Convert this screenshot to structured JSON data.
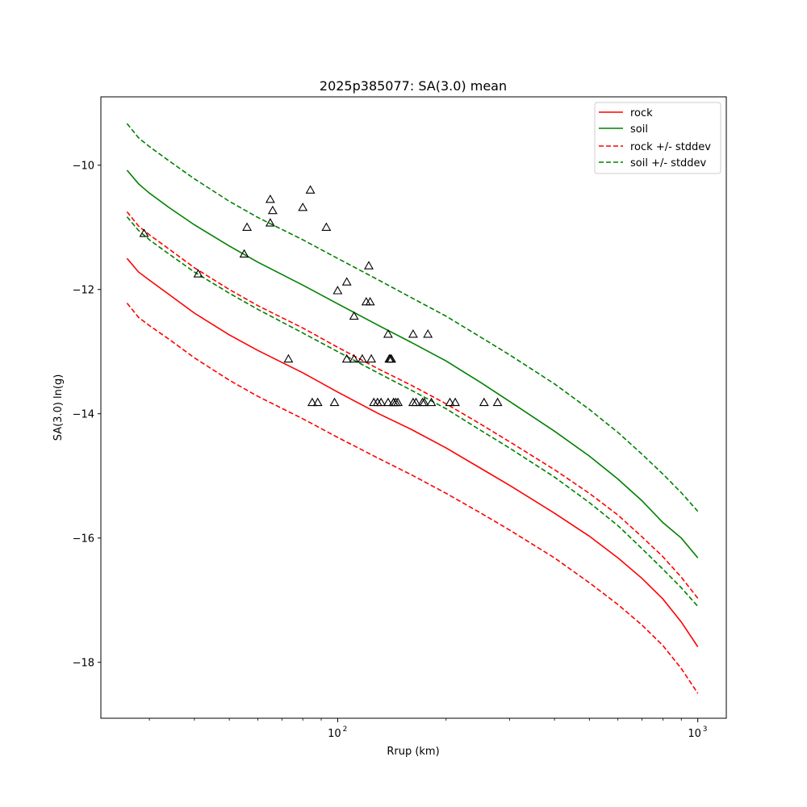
{
  "chart_data": {
    "type": "line",
    "title": "2025p385077: SA(3.0) mean",
    "xlabel": "Rrup (km)",
    "ylabel": "SA(3.0) ln(g)",
    "xscale": "log",
    "xlim": [
      22,
      1200
    ],
    "ylim": [
      -18.9,
      -8.9
    ],
    "yticks": [
      -18,
      -16,
      -14,
      -12,
      -10
    ],
    "xticks_major": [
      100,
      1000
    ],
    "xtick_labels": [
      "10",
      "2",
      "10",
      "3"
    ],
    "legend_position": "top-right",
    "grid": false,
    "colors": {
      "rock": "#ff0000",
      "soil": "#008000",
      "observed": "#000000"
    },
    "series": [
      {
        "name": "rock",
        "style": "solid",
        "color": "#ff0000",
        "x": [
          26,
          28,
          30,
          34,
          40,
          50,
          60,
          80,
          100,
          130,
          160,
          200,
          250,
          300,
          400,
          500,
          600,
          700,
          800,
          900,
          1000
        ],
        "y": [
          -11.5,
          -11.72,
          -11.85,
          -12.08,
          -12.38,
          -12.73,
          -12.98,
          -13.34,
          -13.65,
          -14.0,
          -14.25,
          -14.55,
          -14.88,
          -15.15,
          -15.6,
          -15.97,
          -16.32,
          -16.65,
          -16.98,
          -17.35,
          -17.75
        ]
      },
      {
        "name": "soil",
        "style": "solid",
        "color": "#008000",
        "x": [
          26,
          28,
          30,
          34,
          40,
          50,
          60,
          80,
          100,
          130,
          160,
          200,
          250,
          300,
          400,
          500,
          600,
          700,
          800,
          900,
          1000
        ],
        "y": [
          -10.08,
          -10.3,
          -10.45,
          -10.68,
          -10.96,
          -11.3,
          -11.56,
          -11.93,
          -12.23,
          -12.58,
          -12.85,
          -13.15,
          -13.5,
          -13.8,
          -14.28,
          -14.68,
          -15.05,
          -15.4,
          -15.75,
          -16.0,
          -16.32
        ]
      },
      {
        "name": "rock +/- stddev",
        "style": "dashed",
        "color": "#ff0000",
        "x": [
          26,
          28,
          30,
          34,
          40,
          50,
          60,
          80,
          100,
          130,
          160,
          200,
          250,
          300,
          400,
          500,
          600,
          700,
          800,
          900,
          1000
        ],
        "y": [
          -10.75,
          -10.98,
          -11.12,
          -11.35,
          -11.65,
          -12.0,
          -12.26,
          -12.62,
          -12.93,
          -13.28,
          -13.54,
          -13.84,
          -14.17,
          -14.45,
          -14.9,
          -15.28,
          -15.63,
          -15.98,
          -16.3,
          -16.63,
          -16.97
        ]
      },
      {
        "name": "rock +/- stddev (lower)",
        "style": "dashed",
        "color": "#ff0000",
        "x": [
          26,
          28,
          30,
          34,
          40,
          50,
          60,
          80,
          100,
          130,
          160,
          200,
          250,
          300,
          400,
          500,
          600,
          700,
          800,
          900,
          1000
        ],
        "y": [
          -12.22,
          -12.45,
          -12.58,
          -12.8,
          -13.1,
          -13.46,
          -13.72,
          -14.08,
          -14.38,
          -14.72,
          -14.98,
          -15.28,
          -15.6,
          -15.87,
          -16.32,
          -16.72,
          -17.07,
          -17.4,
          -17.73,
          -18.1,
          -18.5
        ]
      },
      {
        "name": "soil +/- stddev",
        "style": "dashed",
        "color": "#008000",
        "x": [
          26,
          28,
          30,
          34,
          40,
          50,
          60,
          80,
          100,
          130,
          160,
          200,
          250,
          300,
          400,
          500,
          600,
          700,
          800,
          900,
          1000
        ],
        "y": [
          -9.33,
          -9.56,
          -9.7,
          -9.93,
          -10.22,
          -10.58,
          -10.84,
          -11.2,
          -11.5,
          -11.85,
          -12.13,
          -12.43,
          -12.77,
          -13.05,
          -13.52,
          -13.93,
          -14.3,
          -14.65,
          -14.97,
          -15.27,
          -15.57
        ]
      },
      {
        "name": "soil +/- stddev (lower)",
        "style": "dashed",
        "color": "#008000",
        "x": [
          26,
          28,
          30,
          34,
          40,
          50,
          60,
          80,
          100,
          130,
          160,
          200,
          250,
          300,
          400,
          500,
          600,
          700,
          800,
          900,
          1000
        ],
        "y": [
          -10.83,
          -11.05,
          -11.2,
          -11.43,
          -11.72,
          -12.06,
          -12.32,
          -12.7,
          -13.0,
          -13.35,
          -13.62,
          -13.92,
          -14.27,
          -14.55,
          -15.02,
          -15.43,
          -15.8,
          -16.17,
          -16.5,
          -16.8,
          -17.1
        ]
      }
    ],
    "observed": {
      "marker": "triangle",
      "x": [
        29,
        41,
        55,
        56,
        65,
        65,
        66,
        80,
        84,
        73,
        85,
        88,
        93,
        98,
        100,
        106,
        106,
        111,
        111,
        117,
        120,
        123,
        122,
        124,
        126,
        129,
        132,
        138,
        139,
        138,
        140,
        141,
        143,
        143,
        145,
        147,
        162,
        162,
        165,
        172,
        174,
        178,
        182,
        205,
        212,
        255,
        278
      ],
      "y": [
        -11.1,
        -11.75,
        -11.43,
        -11.0,
        -10.55,
        -10.93,
        -10.73,
        -10.68,
        -10.4,
        -13.12,
        -13.82,
        -13.82,
        -11.0,
        -13.82,
        -12.02,
        -11.88,
        -13.12,
        -12.43,
        -13.12,
        -13.12,
        -12.2,
        -12.2,
        -11.62,
        -13.12,
        -13.82,
        -13.82,
        -13.82,
        -12.72,
        -13.12,
        -13.82,
        -13.12,
        -13.12,
        -13.82,
        -13.82,
        -13.82,
        -13.82,
        -12.72,
        -13.82,
        -13.82,
        -13.82,
        -13.82,
        -12.72,
        -13.82,
        -13.82,
        -13.82,
        -13.82,
        -13.82
      ]
    }
  }
}
